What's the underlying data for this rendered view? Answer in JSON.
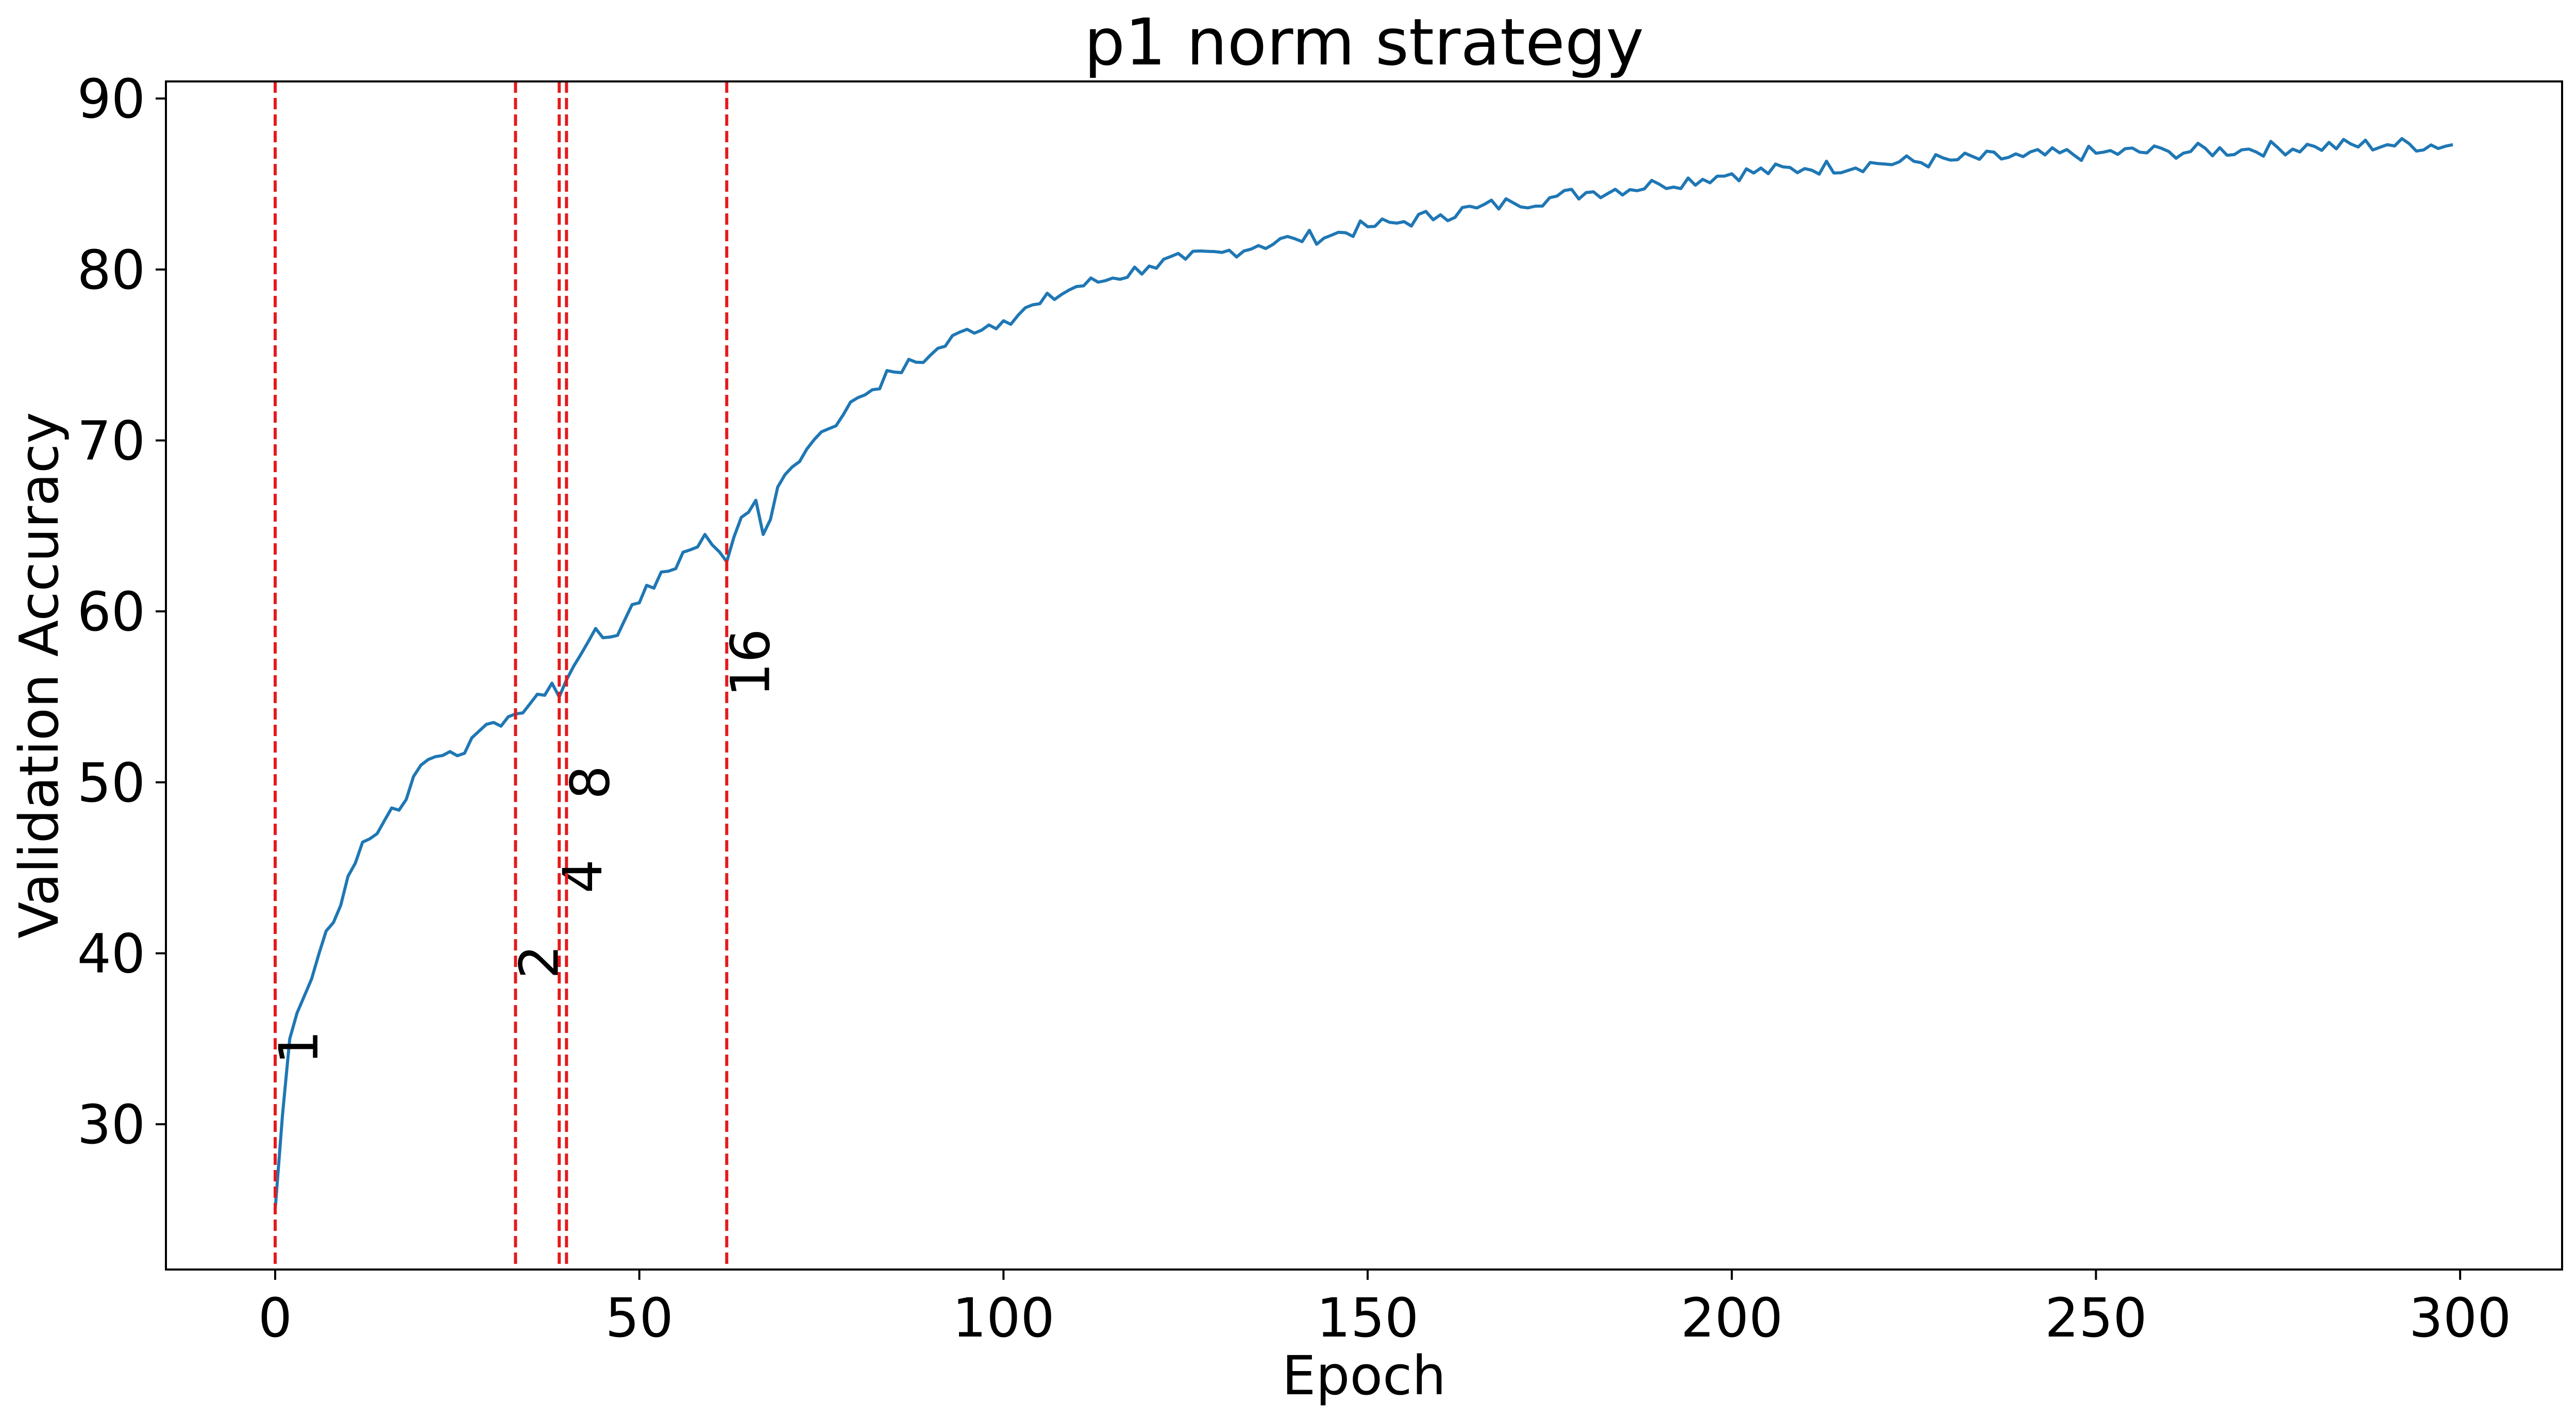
{
  "chart_data": {
    "type": "line",
    "title": "p1 norm strategy",
    "xlabel": "Epoch",
    "ylabel": "Validation Accuracy",
    "xlim": [
      -15,
      314
    ],
    "ylim": [
      21.5,
      91
    ],
    "xticks": [
      0,
      50,
      100,
      150,
      200,
      250,
      300
    ],
    "yticks": [
      30,
      40,
      50,
      60,
      70,
      80,
      90
    ],
    "grid": false,
    "line_color": "#1f77b4",
    "vline_color": "#e41a1c",
    "anchors": [
      [
        0,
        25.0
      ],
      [
        1,
        30.5
      ],
      [
        2,
        35.0
      ],
      [
        3,
        36.5
      ],
      [
        5,
        38.5
      ],
      [
        7,
        41.3
      ],
      [
        8,
        41.8
      ],
      [
        10,
        44.5
      ],
      [
        12,
        46.5
      ],
      [
        14,
        47.0
      ],
      [
        16,
        48.5
      ],
      [
        18,
        49.0
      ],
      [
        20,
        51.0
      ],
      [
        22,
        51.5
      ],
      [
        24,
        51.8
      ],
      [
        26,
        51.7
      ],
      [
        28,
        53.0
      ],
      [
        30,
        53.5
      ],
      [
        33,
        54.0
      ],
      [
        35,
        54.6
      ],
      [
        38,
        55.8
      ],
      [
        39,
        55.0
      ],
      [
        40,
        56.0
      ],
      [
        42,
        57.5
      ],
      [
        44,
        59.0
      ],
      [
        46,
        58.5
      ],
      [
        48,
        59.5
      ],
      [
        50,
        60.5
      ],
      [
        53,
        62.3
      ],
      [
        55,
        62.5
      ],
      [
        57,
        63.6
      ],
      [
        59,
        64.5
      ],
      [
        62,
        62.9
      ],
      [
        64,
        65.5
      ],
      [
        66,
        66.5
      ],
      [
        67,
        64.5
      ],
      [
        70,
        68.0
      ],
      [
        73,
        69.5
      ],
      [
        75,
        70.5
      ],
      [
        78,
        71.5
      ],
      [
        80,
        72.5
      ],
      [
        85,
        74.0
      ],
      [
        90,
        75.0
      ],
      [
        95,
        76.5
      ],
      [
        100,
        77.0
      ],
      [
        105,
        78.0
      ],
      [
        110,
        79.0
      ],
      [
        115,
        79.5
      ],
      [
        120,
        80.2
      ],
      [
        125,
        80.6
      ],
      [
        130,
        81.0
      ],
      [
        135,
        81.4
      ],
      [
        140,
        81.8
      ],
      [
        145,
        82.0
      ],
      [
        150,
        82.5
      ],
      [
        155,
        82.8
      ],
      [
        160,
        83.2
      ],
      [
        165,
        83.6
      ],
      [
        170,
        83.9
      ],
      [
        175,
        84.2
      ],
      [
        180,
        84.5
      ],
      [
        190,
        85.0
      ],
      [
        200,
        85.6
      ],
      [
        210,
        85.9
      ],
      [
        220,
        86.2
      ],
      [
        230,
        86.4
      ],
      [
        240,
        86.6
      ],
      [
        250,
        86.8
      ],
      [
        260,
        86.9
      ],
      [
        270,
        87.0
      ],
      [
        280,
        87.2
      ],
      [
        290,
        87.3
      ],
      [
        299,
        87.3
      ]
    ],
    "vlines": [
      {
        "x": 0,
        "label": "1",
        "label_y": 33.5
      },
      {
        "x": 33,
        "label": "2",
        "label_y": 38.5
      },
      {
        "x": 39,
        "label": "4",
        "label_y": 43.5
      },
      {
        "x": 40,
        "label": "8",
        "label_y": 49.0
      },
      {
        "x": 62,
        "label": "16",
        "label_y": 55.0
      }
    ]
  }
}
